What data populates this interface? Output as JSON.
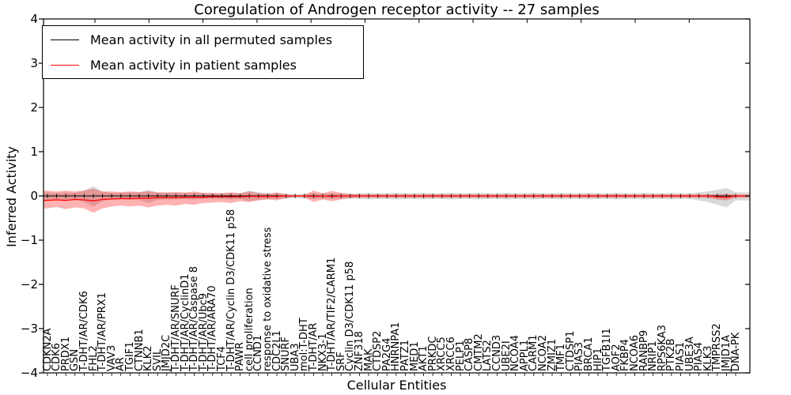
{
  "title": "Coregulation of Androgen receptor activity -- 27 samples",
  "axes": {
    "ylabel": "Inferred Activity",
    "xlabel": "Cellular Entities",
    "ytick_labels": [
      "4",
      "3",
      "2",
      "1",
      "0",
      "−1",
      "−2",
      "−3",
      "−4"
    ],
    "ytick_values": [
      4,
      3,
      2,
      1,
      0,
      -1,
      -2,
      -3,
      -4
    ],
    "ylim": [
      -4,
      4
    ]
  },
  "legend": [
    {
      "label": "Mean activity in all permuted samples",
      "color": "#000000"
    },
    {
      "label": "Mean activity in patient samples",
      "color": "#ff0000"
    }
  ],
  "colors": {
    "permuted_line": "#000000",
    "patient_line": "#ff0000",
    "permuted_band": "#808080",
    "patient_band": "#ff0000",
    "band_opacity": "0.3"
  },
  "chart_data": {
    "type": "line",
    "title": "Coregulation of Androgen receptor activity -- 27 samples",
    "xlabel": "Cellular Entities",
    "ylabel": "Inferred Activity",
    "ylim": [
      -4,
      4
    ],
    "grid": false,
    "legend_position": "upper left",
    "categories": [
      "CDKN2A",
      "CDK6",
      "PRDX1",
      "GSN",
      "T-DHT/AR/CDK6",
      "FHL2",
      "T-DHT/AR/PRX1",
      "VAV3",
      "AR",
      "TGIF1",
      "CTNNB1",
      "KLK2",
      "SVIL",
      "JMJD2C",
      "T-DHT/AR/SNURF",
      "T-DHT/AR/CyclinD1",
      "T-DHT/AR/Caspase 8",
      "T-DHT/AR/Ubc9",
      "T-DHT/AR/ARA70",
      "TCF4",
      "T-DHT/AR/Cyclin D3/CDK11 p58",
      "PAWR",
      "cell proliferation",
      "CCND1",
      "response to oxidative stress",
      "CDC2L1",
      "SNURF",
      "UBA3",
      "mol:T-DHT",
      "T-DHT/AR",
      "NKX3-1",
      "T-DHT/AR/TIF2/CARM1",
      "SRF",
      "Cyclin D3/CDK11 p58",
      "ZNF318",
      "MAK",
      "CTDSP2",
      "PA2G4",
      "HNRNPA1",
      "PATZ1",
      "MED1",
      "AKT1",
      "PRKDC",
      "XRCC5",
      "XRCC6",
      "PELP1",
      "CASP8",
      "CMTM2",
      "LATS2",
      "CCND3",
      "UBE2I",
      "NCOA4",
      "APPL1",
      "CARM1",
      "NCOA2",
      "ZMIZ1",
      "TMF1",
      "CTDSP1",
      "PIAS3",
      "BRCA1",
      "HIP1",
      "TGFB1I1",
      "AOF2",
      "FKBP4",
      "NCOA6",
      "RANBP9",
      "NRIP1",
      "RPS6KA3",
      "PTK2B",
      "PIAS1",
      "UBE3A",
      "PIAS4",
      "KLK3",
      "TMPRSS2",
      "JMJD1A",
      "DNA-PK"
    ],
    "series": [
      {
        "name": "Mean activity in all permuted samples",
        "color": "#000000",
        "values": [
          0,
          0,
          0,
          0,
          0,
          0,
          0,
          0,
          0,
          0,
          0,
          0,
          0,
          0,
          0,
          0,
          0,
          0,
          0,
          0,
          0,
          0,
          0,
          0,
          0,
          0,
          0,
          0,
          0,
          0,
          0,
          0,
          0,
          0,
          0,
          0,
          0,
          0,
          0,
          0,
          0,
          0,
          0,
          0,
          0,
          0,
          0,
          0,
          0,
          0,
          0,
          0,
          0,
          0,
          0,
          0,
          0,
          0,
          0,
          0,
          0,
          0,
          0,
          0,
          0,
          0,
          0,
          0,
          0,
          0,
          0,
          0,
          0,
          0,
          0,
          0
        ],
        "band_upper": [
          0.08,
          0.07,
          0.08,
          0.07,
          0.12,
          0.22,
          0.1,
          0.07,
          0.07,
          0.08,
          0.08,
          0.14,
          0.08,
          0.07,
          0.07,
          0.06,
          0.07,
          0.06,
          0.06,
          0.06,
          0.07,
          0.06,
          0.12,
          0.08,
          0.06,
          0.06,
          0.05,
          0.04,
          0.05,
          0.06,
          0.05,
          0.06,
          0.05,
          0.05,
          0.06,
          0.07,
          0.06,
          0.06,
          0.07,
          0.06,
          0.06,
          0.07,
          0.06,
          0.06,
          0.07,
          0.06,
          0.06,
          0.07,
          0.06,
          0.06,
          0.07,
          0.06,
          0.06,
          0.07,
          0.06,
          0.06,
          0.07,
          0.06,
          0.06,
          0.07,
          0.06,
          0.06,
          0.07,
          0.06,
          0.06,
          0.07,
          0.06,
          0.06,
          0.07,
          0.06,
          0.06,
          0.08,
          0.1,
          0.14,
          0.18,
          0.08
        ],
        "band_lower": [
          -0.09,
          -0.08,
          -0.09,
          -0.08,
          -0.14,
          -0.24,
          -0.12,
          -0.08,
          -0.08,
          -0.09,
          -0.09,
          -0.16,
          -0.09,
          -0.08,
          -0.08,
          -0.07,
          -0.08,
          -0.07,
          -0.07,
          -0.07,
          -0.08,
          -0.07,
          -0.12,
          -0.09,
          -0.07,
          -0.07,
          -0.06,
          -0.05,
          -0.06,
          -0.07,
          -0.06,
          -0.07,
          -0.06,
          -0.06,
          -0.07,
          -0.08,
          -0.07,
          -0.07,
          -0.08,
          -0.07,
          -0.07,
          -0.08,
          -0.07,
          -0.07,
          -0.08,
          -0.07,
          -0.07,
          -0.08,
          -0.07,
          -0.07,
          -0.08,
          -0.07,
          -0.07,
          -0.08,
          -0.07,
          -0.07,
          -0.08,
          -0.07,
          -0.07,
          -0.08,
          -0.07,
          -0.07,
          -0.08,
          -0.07,
          -0.07,
          -0.08,
          -0.07,
          -0.07,
          -0.08,
          -0.07,
          -0.07,
          -0.1,
          -0.14,
          -0.2,
          -0.26,
          -0.1
        ]
      },
      {
        "name": "Mean activity in patient samples",
        "color": "#ff0000",
        "values": [
          -0.1,
          -0.09,
          -0.1,
          -0.08,
          -0.09,
          -0.11,
          -0.08,
          -0.07,
          -0.06,
          -0.06,
          -0.05,
          -0.05,
          -0.04,
          -0.04,
          -0.04,
          -0.03,
          -0.03,
          -0.03,
          -0.02,
          -0.02,
          -0.02,
          -0.02,
          -0.01,
          -0.01,
          -0.01,
          -0.01,
          0,
          0,
          0,
          -0.01,
          0,
          -0.01,
          0,
          0,
          0,
          0,
          0,
          0,
          0,
          0,
          0,
          0,
          0,
          0,
          0,
          0,
          0,
          0,
          0,
          0,
          0,
          0,
          0,
          0,
          0,
          0,
          0,
          0,
          0,
          0,
          0,
          0,
          0,
          0,
          0,
          0,
          0,
          0,
          0,
          0,
          0,
          0,
          0,
          -0.02,
          -0.03,
          0
        ],
        "band_upper": [
          0.12,
          0.1,
          0.12,
          0.1,
          0.12,
          0.16,
          0.1,
          0.1,
          0.09,
          0.1,
          0.09,
          0.1,
          0.08,
          0.08,
          0.09,
          0.08,
          0.1,
          0.07,
          0.07,
          0.06,
          0.08,
          0.06,
          0.1,
          0.06,
          0.05,
          0.08,
          0.03,
          0.01,
          0.02,
          0.12,
          0.06,
          0.11,
          0.07,
          0.04,
          0.035,
          0.03,
          0.035,
          0.03,
          0.03,
          0.035,
          0.03,
          0.03,
          0.035,
          0.03,
          0.03,
          0.03,
          0.035,
          0.03,
          0.03,
          0.03,
          0.035,
          0.03,
          0.03,
          0.03,
          0.035,
          0.03,
          0.03,
          0.03,
          0.03,
          0.035,
          0.03,
          0.03,
          0.035,
          0.03,
          0.03,
          0.03,
          0.03,
          0.035,
          0.03,
          0.03,
          0.03,
          0.03,
          0.03,
          0.04,
          0.05,
          0.03
        ],
        "band_lower": [
          -0.28,
          -0.25,
          -0.3,
          -0.26,
          -0.28,
          -0.38,
          -0.28,
          -0.24,
          -0.22,
          -0.24,
          -0.22,
          -0.26,
          -0.22,
          -0.2,
          -0.22,
          -0.18,
          -0.2,
          -0.16,
          -0.15,
          -0.14,
          -0.16,
          -0.12,
          -0.14,
          -0.1,
          -0.08,
          -0.1,
          -0.05,
          -0.02,
          -0.03,
          -0.14,
          -0.08,
          -0.12,
          -0.08,
          -0.05,
          -0.04,
          -0.04,
          -0.04,
          -0.04,
          -0.04,
          -0.04,
          -0.04,
          -0.04,
          -0.04,
          -0.04,
          -0.04,
          -0.04,
          -0.04,
          -0.04,
          -0.04,
          -0.04,
          -0.04,
          -0.04,
          -0.04,
          -0.04,
          -0.04,
          -0.04,
          -0.04,
          -0.04,
          -0.04,
          -0.04,
          -0.04,
          -0.04,
          -0.04,
          -0.04,
          -0.04,
          -0.04,
          -0.04,
          -0.04,
          -0.04,
          -0.04,
          -0.04,
          -0.04,
          -0.05,
          -0.08,
          -0.1,
          -0.04
        ]
      }
    ]
  }
}
